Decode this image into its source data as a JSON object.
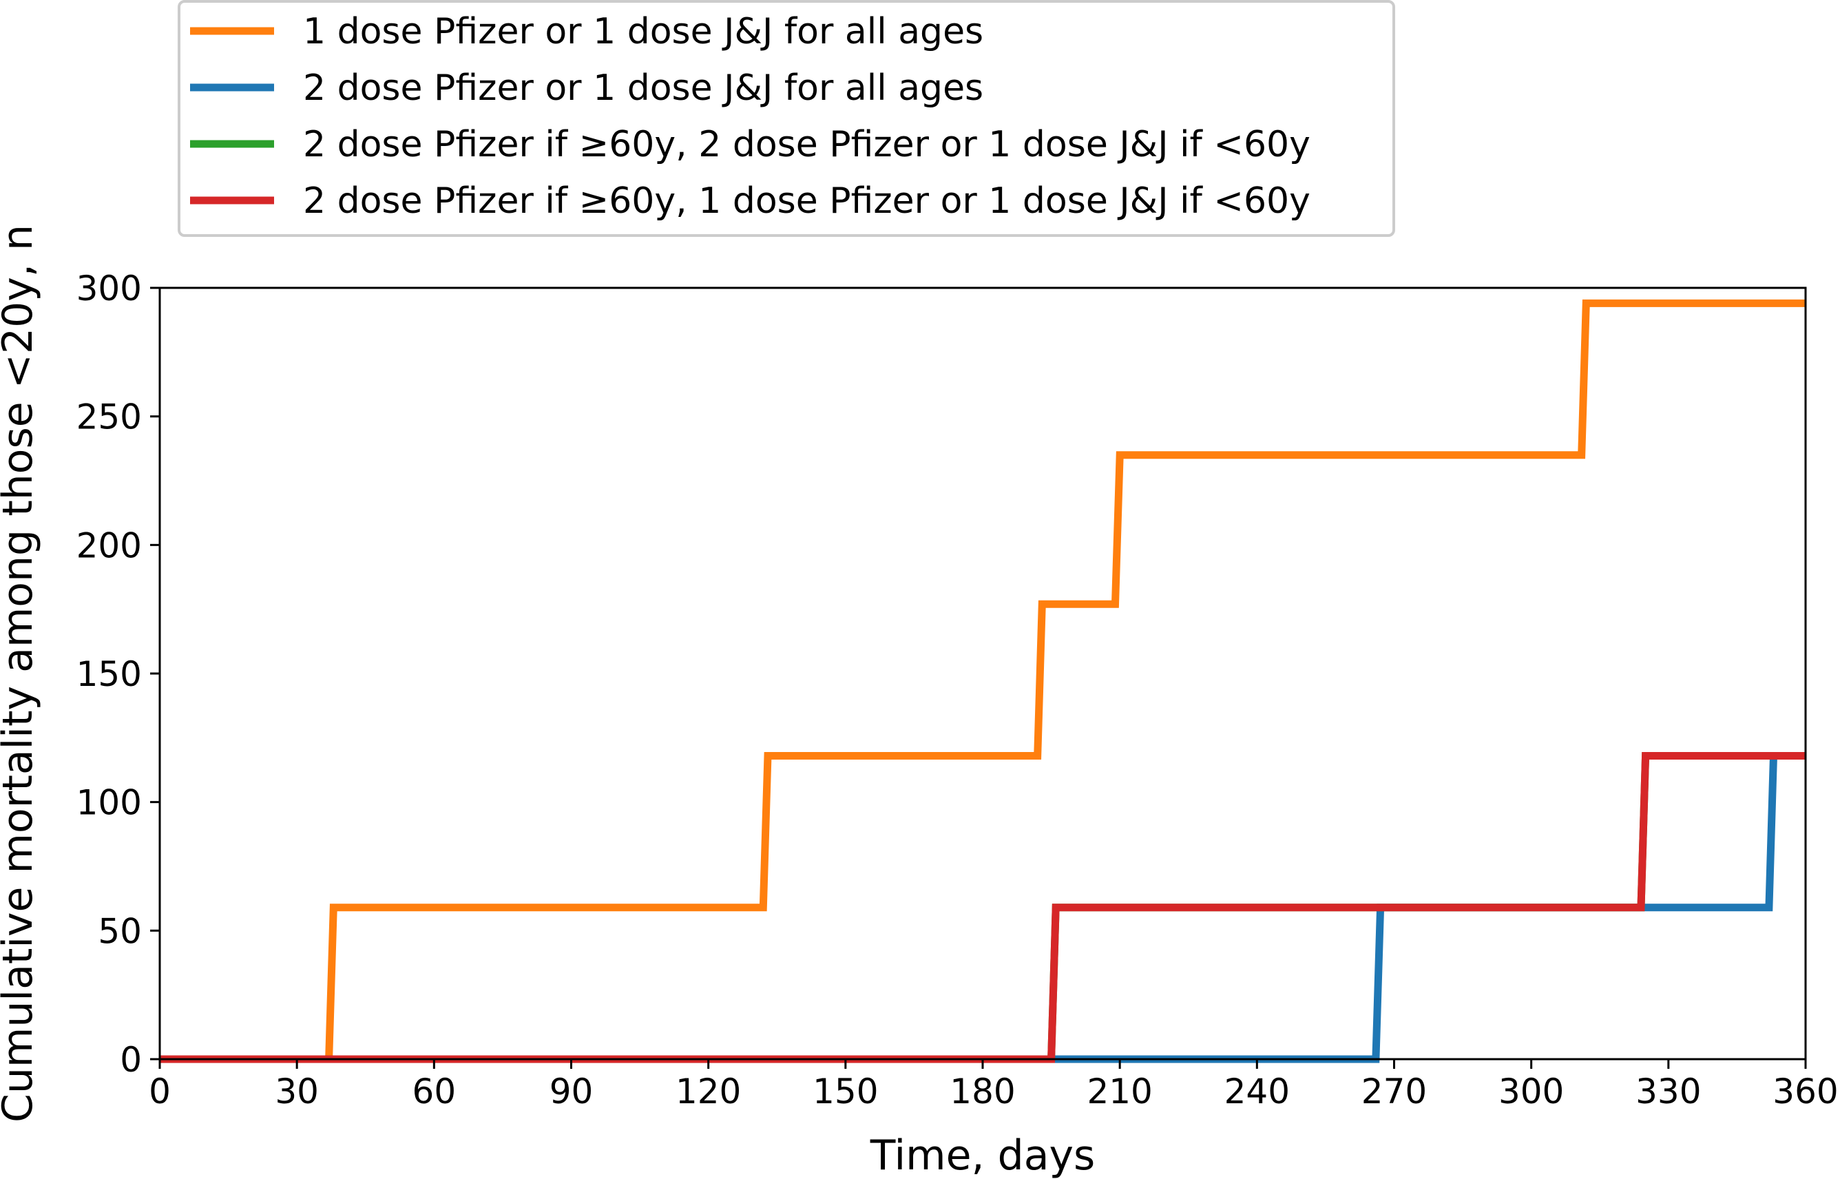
{
  "chart_data": {
    "type": "line",
    "step": "post",
    "xlabel": "Time, days",
    "ylabel": "Cumulative mortality among those <20y, n",
    "xlim": [
      0,
      360
    ],
    "ylim": [
      0,
      300
    ],
    "xticks": [
      0,
      30,
      60,
      90,
      120,
      150,
      180,
      210,
      240,
      270,
      300,
      330,
      360
    ],
    "yticks": [
      0,
      50,
      100,
      150,
      200,
      250,
      300
    ],
    "grid": false,
    "legend_position": "above-left",
    "series": [
      {
        "name": "1 dose Pfizer or 1 dose J&J for all ages",
        "color": "#ff7f0e",
        "points": [
          [
            0,
            0
          ],
          [
            37,
            0
          ],
          [
            38,
            59
          ],
          [
            132,
            59
          ],
          [
            133,
            118
          ],
          [
            192,
            118
          ],
          [
            193,
            177
          ],
          [
            209,
            177
          ],
          [
            210,
            235
          ],
          [
            311,
            235
          ],
          [
            312,
            294
          ],
          [
            360,
            294
          ]
        ]
      },
      {
        "name": "2 dose Pfizer or 1 dose J&J for all ages",
        "color": "#1f77b4",
        "points": [
          [
            0,
            0
          ],
          [
            266,
            0
          ],
          [
            267,
            59
          ],
          [
            352,
            59
          ],
          [
            353,
            118
          ],
          [
            360,
            118
          ]
        ]
      },
      {
        "name": "2 dose Pfizer if ≥60y, 2 dose Pfizer or 1 dose J&J if <60y",
        "color": "#2ca02c",
        "points": [
          [
            0,
            0
          ],
          [
            195,
            0
          ],
          [
            196,
            59
          ],
          [
            324,
            59
          ],
          [
            325,
            118
          ],
          [
            360,
            118
          ]
        ]
      },
      {
        "name": "2 dose Pfizer if ≥60y, 1 dose Pfizer or 1 dose J&J if <60y",
        "color": "#d62728",
        "points": [
          [
            0,
            0
          ],
          [
            195,
            0
          ],
          [
            196,
            59
          ],
          [
            324,
            59
          ],
          [
            325,
            118
          ],
          [
            360,
            118
          ]
        ]
      }
    ]
  }
}
